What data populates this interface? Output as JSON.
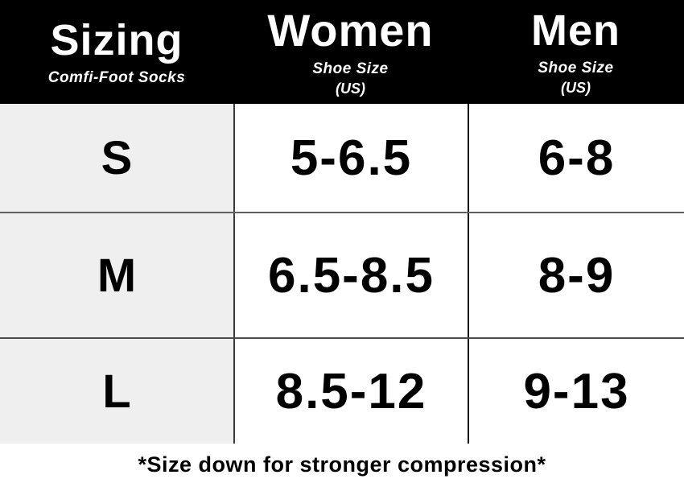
{
  "title": "Sizing chart for Comfi-Foot Socks",
  "colors": {
    "header_bg": "#000000",
    "header_text": "#ffffff",
    "size_column_bg": "#efefef",
    "cell_bg": "#ffffff",
    "body_text": "#000000",
    "horizontal_border": "#616161",
    "vertical_border": "#141414"
  },
  "header": {
    "sizing": {
      "title": "Sizing",
      "subtitle": "Comfi-Foot Socks"
    },
    "women": {
      "title": "Women",
      "subtitle": "Shoe Size",
      "unit": "(US)"
    },
    "men": {
      "title": "Men",
      "subtitle": "Shoe Size",
      "unit": "(US)"
    }
  },
  "table": {
    "rows": [
      {
        "size": "S",
        "women": "5-6.5",
        "men": "6-8"
      },
      {
        "size": "M",
        "women": "6.5-8.5",
        "men": "8-9"
      },
      {
        "size": "L",
        "women": "8.5-12",
        "men": "9-13"
      }
    ]
  },
  "footer": {
    "note": "*Size down for stronger compression*"
  },
  "chart_data": {
    "type": "table",
    "title": "Sizing",
    "subtitle": "Comfi-Foot Socks",
    "columns": [
      "Sizing",
      "Women Shoe Size (US)",
      "Men Shoe Size (US)"
    ],
    "rows": [
      [
        "S",
        "5-6.5",
        "6-8"
      ],
      [
        "M",
        "6.5-8.5",
        "8-9"
      ],
      [
        "L",
        "8.5-12",
        "9-13"
      ]
    ],
    "note": "*Size down for stronger compression*"
  }
}
